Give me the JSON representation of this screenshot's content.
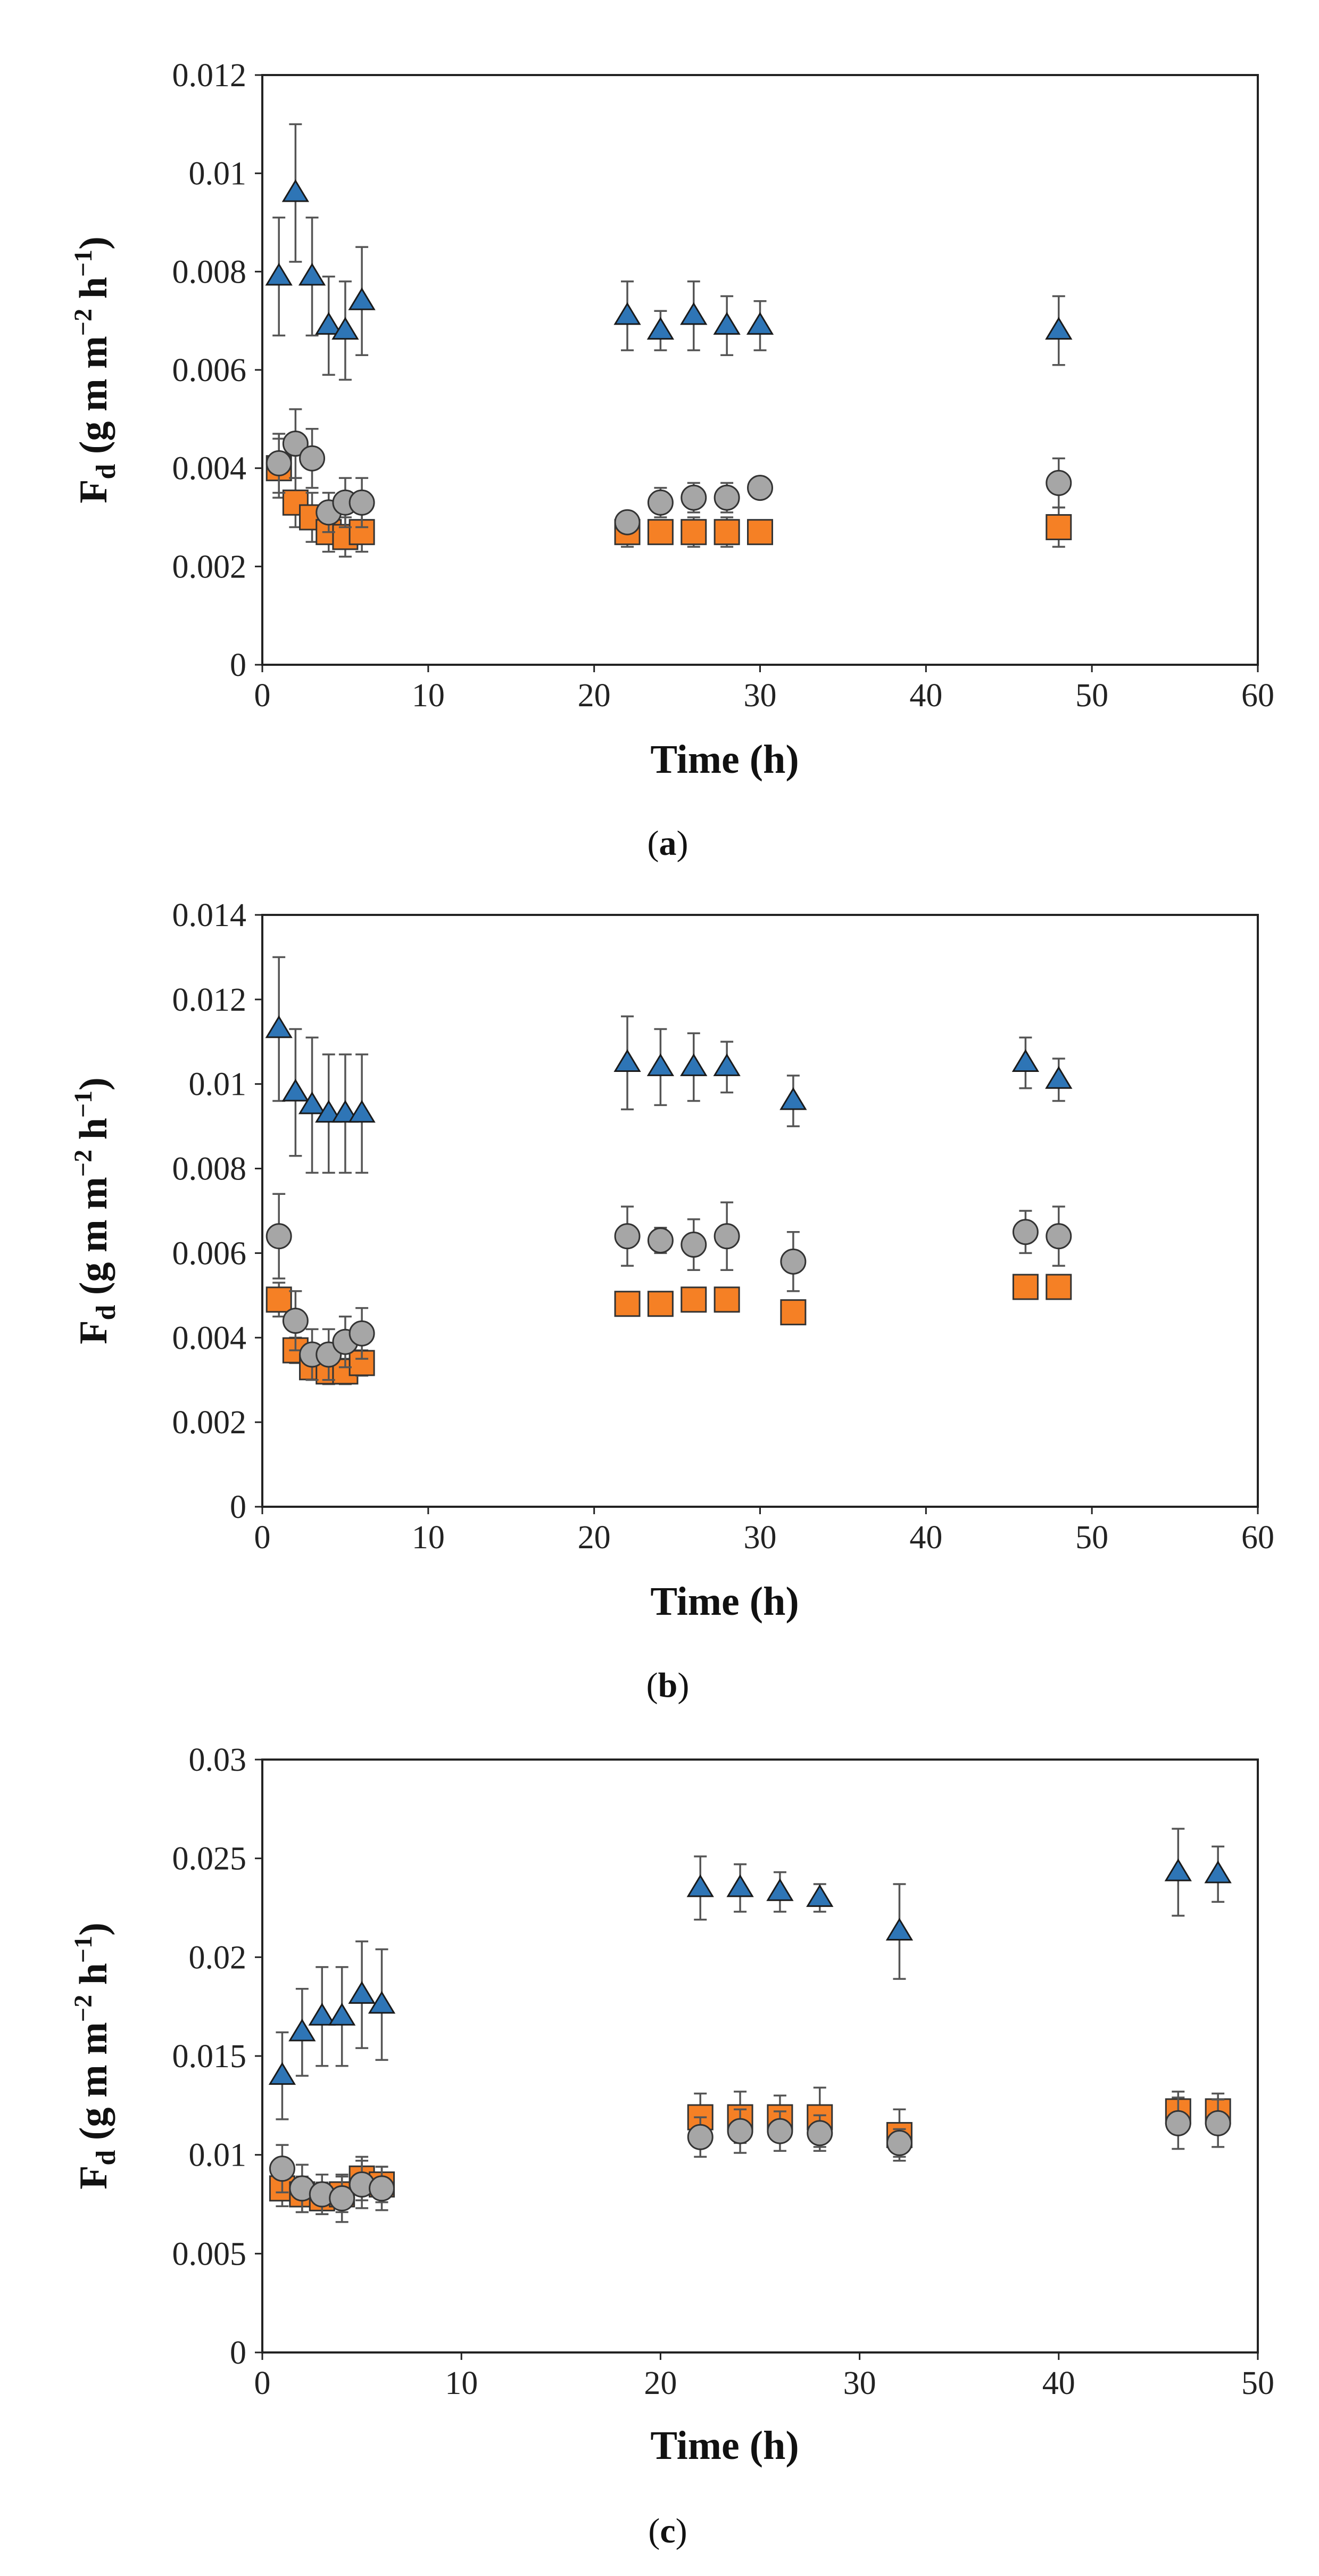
{
  "figure": {
    "panels": [
      {
        "caption_open": "(",
        "caption_letter": "a",
        "caption_close": ")",
        "ylabel_main": "F",
        "ylabel_sub": "d",
        "ylabel_open": " (g m m",
        "ylabel_exp1": "−2",
        "ylabel_mid": " h",
        "ylabel_exp2": "−1",
        "ylabel_close": ")"
      },
      {
        "caption_open": "(",
        "caption_letter": "b",
        "caption_close": ")",
        "ylabel_main": "F",
        "ylabel_sub": "d",
        "ylabel_open": " (g m m",
        "ylabel_exp1": "−2",
        "ylabel_mid": " h",
        "ylabel_exp2": "−1",
        "ylabel_close": ")"
      },
      {
        "caption_open": "(",
        "caption_letter": "c",
        "caption_close": ")",
        "ylabel_main": "F",
        "ylabel_sub": "d",
        "ylabel_open": " (g m m",
        "ylabel_exp1": "−2",
        "ylabel_mid": " h",
        "ylabel_exp2": "−1",
        "ylabel_close": ")"
      }
    ]
  },
  "colors": {
    "triangle": "#2e75b6",
    "circle": "#a6a6a6",
    "square": "#f58025",
    "errorbar": "#555555"
  },
  "chart_data": [
    {
      "type": "scatter",
      "title": "",
      "xlabel": "Time (h)",
      "ylabel": "Fd (g m m−2 h−1)",
      "xlim": [
        0,
        60
      ],
      "ylim": [
        0,
        0.012
      ],
      "xticks": [
        0,
        10,
        20,
        30,
        40,
        50,
        60
      ],
      "xtick_labels": [
        "0",
        "10",
        "20",
        "30",
        "40",
        "50",
        "60"
      ],
      "yticks": [
        0,
        0.002,
        0.004,
        0.006,
        0.008,
        0.01,
        0.012
      ],
      "ytick_labels": [
        "0",
        "0.002",
        "0.004",
        "0.006",
        "0.008",
        "0.01",
        "0.012"
      ],
      "series": [
        {
          "name": "triangles",
          "marker": "triangle",
          "x": [
            1,
            2,
            3,
            4,
            5,
            6,
            22,
            24,
            26,
            28,
            30,
            48
          ],
          "y": [
            0.0079,
            0.0096,
            0.0079,
            0.0069,
            0.0068,
            0.0074,
            0.0071,
            0.0068,
            0.0071,
            0.0069,
            0.0069,
            0.0068
          ],
          "err": [
            0.0012,
            0.0014,
            0.0012,
            0.001,
            0.001,
            0.0011,
            0.0007,
            0.0004,
            0.0007,
            0.0006,
            0.0005,
            0.0007
          ]
        },
        {
          "name": "circles",
          "marker": "circle",
          "x": [
            1,
            2,
            3,
            4,
            5,
            6,
            22,
            24,
            26,
            28,
            30,
            48
          ],
          "y": [
            0.0041,
            0.0045,
            0.0042,
            0.0031,
            0.0033,
            0.0033,
            0.0029,
            0.0033,
            0.0034,
            0.0034,
            0.0036,
            0.0037
          ],
          "err": [
            0.0006,
            0.0007,
            0.0006,
            0.0004,
            0.0005,
            0.0005,
            0.0002,
            0.0003,
            0.0003,
            0.0003,
            0.0002,
            0.0005
          ]
        },
        {
          "name": "squares",
          "marker": "square",
          "x": [
            1,
            2,
            3,
            4,
            5,
            6,
            22,
            24,
            26,
            28,
            30,
            48
          ],
          "y": [
            0.004,
            0.0033,
            0.003,
            0.0027,
            0.0026,
            0.0027,
            0.0027,
            0.0027,
            0.0027,
            0.0027,
            0.0027,
            0.0028
          ],
          "err": [
            0.0006,
            0.0005,
            0.0005,
            0.0004,
            0.0004,
            0.0004,
            0.0003,
            0.0002,
            0.0003,
            0.0003,
            0.0002,
            0.0004
          ]
        }
      ]
    },
    {
      "type": "scatter",
      "title": "",
      "xlabel": "Time (h)",
      "ylabel": "Fd (g m m−2 h−1)",
      "xlim": [
        0,
        60
      ],
      "ylim": [
        0,
        0.014
      ],
      "xticks": [
        0,
        10,
        20,
        30,
        40,
        50,
        60
      ],
      "xtick_labels": [
        "0",
        "10",
        "20",
        "30",
        "40",
        "50",
        "60"
      ],
      "yticks": [
        0,
        0.002,
        0.004,
        0.006,
        0.008,
        0.01,
        0.012,
        0.014
      ],
      "ytick_labels": [
        "0",
        "0.002",
        "0.004",
        "0.006",
        "0.008",
        "0.01",
        "0.012",
        "0.014"
      ],
      "series": [
        {
          "name": "triangles",
          "marker": "triangle",
          "x": [
            1,
            2,
            3,
            4,
            5,
            6,
            22,
            24,
            26,
            28,
            32,
            46,
            48
          ],
          "y": [
            0.0113,
            0.0098,
            0.0095,
            0.0093,
            0.0093,
            0.0093,
            0.0105,
            0.0104,
            0.0104,
            0.0104,
            0.0096,
            0.0105,
            0.0101
          ],
          "err": [
            0.0017,
            0.0015,
            0.0016,
            0.0014,
            0.0014,
            0.0014,
            0.0011,
            0.0009,
            0.0008,
            0.0006,
            0.0006,
            0.0006,
            0.0005
          ]
        },
        {
          "name": "circles",
          "marker": "circle",
          "x": [
            1,
            2,
            3,
            4,
            5,
            6,
            22,
            24,
            26,
            28,
            32,
            46,
            48
          ],
          "y": [
            0.0064,
            0.0044,
            0.0036,
            0.0036,
            0.0039,
            0.0041,
            0.0064,
            0.0063,
            0.0062,
            0.0064,
            0.0058,
            0.0065,
            0.0064
          ],
          "err": [
            0.001,
            0.0007,
            0.0006,
            0.0006,
            0.0006,
            0.0006,
            0.0007,
            0.0003,
            0.0006,
            0.0008,
            0.0007,
            0.0005,
            0.0007
          ]
        },
        {
          "name": "squares",
          "marker": "square",
          "x": [
            1,
            2,
            3,
            4,
            5,
            6,
            22,
            24,
            26,
            28,
            32,
            46,
            48
          ],
          "y": [
            0.0049,
            0.0037,
            0.0033,
            0.0032,
            0.0032,
            0.0034,
            0.0048,
            0.0048,
            0.0049,
            0.0049,
            0.0046,
            0.0052,
            0.0052
          ],
          "err": [
            0.0004,
            0.0003,
            0.0003,
            0.0003,
            0.0003,
            0.0003,
            0.0002,
            0.0002,
            0.0002,
            0.0002,
            0.0002,
            0.0002,
            0.0002
          ]
        }
      ]
    },
    {
      "type": "scatter",
      "title": "",
      "xlabel": "Time (h)",
      "ylabel": "Fd (g m m−2 h−1)",
      "xlim": [
        0,
        50
      ],
      "ylim": [
        0,
        0.03
      ],
      "xticks": [
        0,
        10,
        20,
        30,
        40,
        50
      ],
      "xtick_labels": [
        "0",
        "10",
        "20",
        "30",
        "40",
        "50"
      ],
      "yticks": [
        0,
        0.005,
        0.01,
        0.015,
        0.02,
        0.025,
        0.03
      ],
      "ytick_labels": [
        "0",
        "0.005",
        "0.01",
        "0.015",
        "0.02",
        "0.025",
        "0.03"
      ],
      "series": [
        {
          "name": "triangles",
          "marker": "triangle",
          "x": [
            1,
            2,
            3,
            4,
            5,
            6,
            22,
            24,
            26,
            28,
            32,
            46,
            48
          ],
          "y": [
            0.014,
            0.0162,
            0.017,
            0.017,
            0.0181,
            0.0176,
            0.0235,
            0.0235,
            0.0233,
            0.023,
            0.0213,
            0.0243,
            0.0242
          ],
          "err": [
            0.0022,
            0.0022,
            0.0025,
            0.0025,
            0.0027,
            0.0028,
            0.0016,
            0.0012,
            0.001,
            0.0007,
            0.0024,
            0.0022,
            0.0014
          ]
        },
        {
          "name": "circles",
          "marker": "circle",
          "x": [
            1,
            2,
            3,
            4,
            5,
            6,
            22,
            24,
            26,
            28,
            32,
            46,
            48
          ],
          "y": [
            0.0093,
            0.0083,
            0.008,
            0.0078,
            0.0085,
            0.0083,
            0.0109,
            0.0112,
            0.0112,
            0.0111,
            0.0106,
            0.0116,
            0.0116
          ],
          "err": [
            0.0012,
            0.0012,
            0.001,
            0.0012,
            0.0012,
            0.0011,
            0.001,
            0.0011,
            0.001,
            0.0009,
            0.0007,
            0.0013,
            0.0012
          ]
        },
        {
          "name": "squares",
          "marker": "square",
          "x": [
            1,
            2,
            3,
            4,
            5,
            6,
            22,
            24,
            26,
            28,
            32,
            46,
            48
          ],
          "y": [
            0.0083,
            0.008,
            0.0078,
            0.008,
            0.0088,
            0.0085,
            0.0119,
            0.0119,
            0.0119,
            0.0119,
            0.011,
            0.0122,
            0.0122
          ],
          "err": [
            0.0009,
            0.0009,
            0.0008,
            0.0009,
            0.0011,
            0.0009,
            0.0012,
            0.0013,
            0.0011,
            0.0015,
            0.0013,
            0.001,
            0.0009
          ]
        }
      ]
    }
  ]
}
